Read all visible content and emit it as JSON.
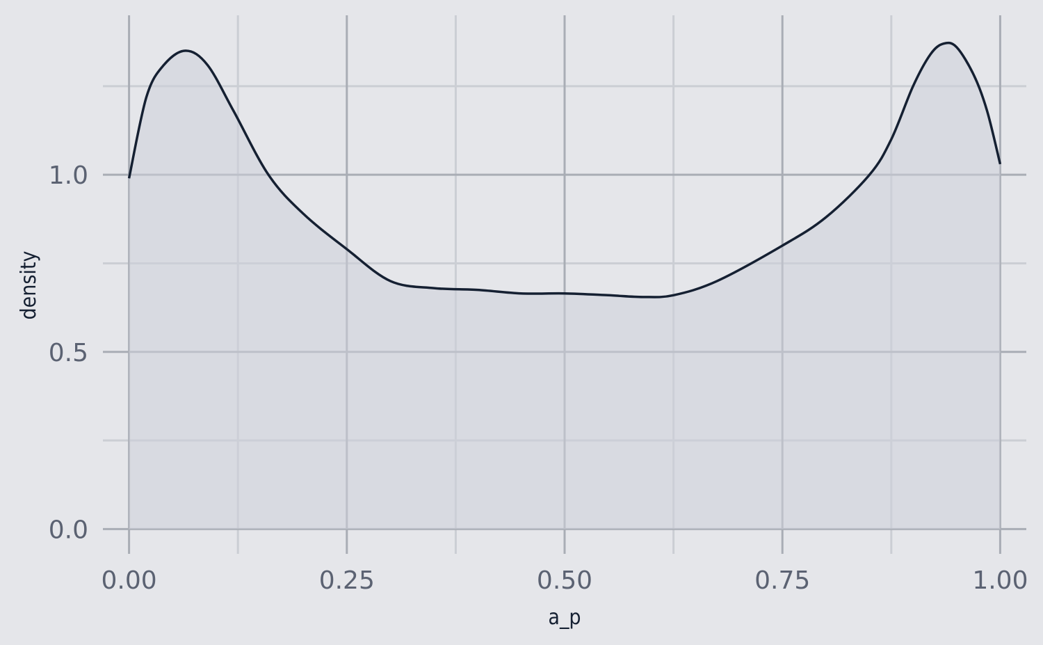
{
  "colors": {
    "background": "#e5e6ea",
    "grid_major": "#a9adb5",
    "grid_minor": "#cbced4",
    "fill": "#cdd0d8",
    "line": "#152032",
    "tick_text": "#5b6272",
    "axis_title": "#152032"
  },
  "chart_data": {
    "type": "area",
    "title": "",
    "xlabel": "a_p",
    "ylabel": "density",
    "xlim": [
      -0.03,
      1.03
    ],
    "ylim": [
      -0.07,
      1.45
    ],
    "grid": true,
    "legend": "none",
    "x_ticks": [
      {
        "value": 0.0,
        "label": "0.00"
      },
      {
        "value": 0.25,
        "label": "0.25"
      },
      {
        "value": 0.5,
        "label": "0.50"
      },
      {
        "value": 0.75,
        "label": "0.75"
      },
      {
        "value": 1.0,
        "label": "1.00"
      }
    ],
    "x_minor_ticks": [
      0.125,
      0.375,
      0.625,
      0.875
    ],
    "y_ticks": [
      {
        "value": 0.0,
        "label": "0.0"
      },
      {
        "value": 0.5,
        "label": "0.5"
      },
      {
        "value": 1.0,
        "label": "1.0"
      }
    ],
    "y_minor_ticks": [
      0.25,
      0.75,
      1.25
    ],
    "series": [
      {
        "x": [
          0.0,
          0.02,
          0.04,
          0.065,
          0.09,
          0.12,
          0.16,
          0.2,
          0.25,
          0.3,
          0.35,
          0.4,
          0.45,
          0.5,
          0.55,
          0.59,
          0.625,
          0.675,
          0.75,
          0.8,
          0.85,
          0.875,
          0.9,
          0.92,
          0.935,
          0.95,
          0.97,
          0.985,
          1.0
        ],
        "y": [
          0.99,
          1.22,
          1.31,
          1.35,
          1.31,
          1.18,
          1.0,
          0.89,
          0.79,
          0.7,
          0.68,
          0.675,
          0.665,
          0.665,
          0.66,
          0.655,
          0.66,
          0.7,
          0.8,
          0.88,
          1.0,
          1.1,
          1.25,
          1.34,
          1.37,
          1.36,
          1.28,
          1.18,
          1.03
        ]
      }
    ]
  }
}
